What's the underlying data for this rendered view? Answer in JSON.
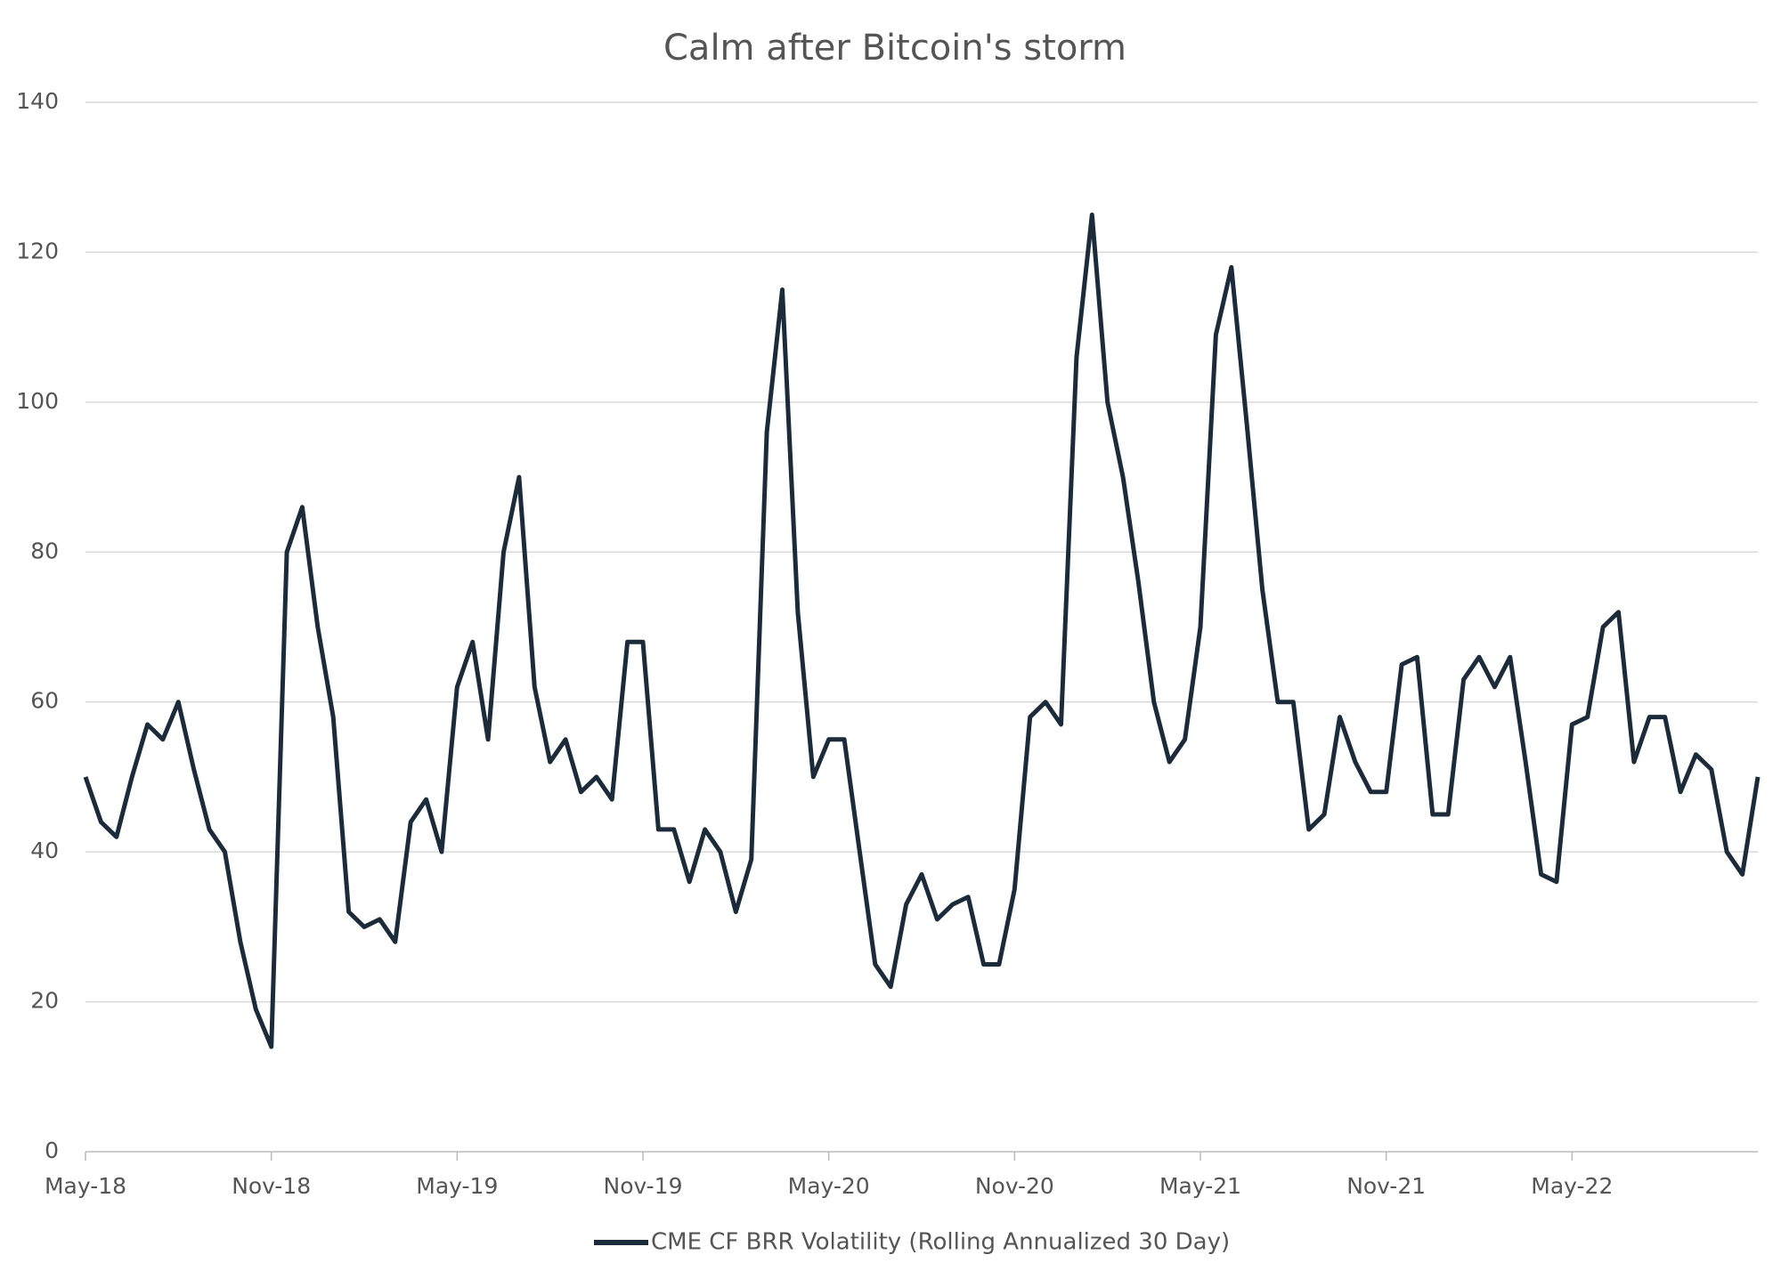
{
  "chart_data": {
    "type": "line",
    "title": "Calm after Bitcoin's storm",
    "categories": [
      "May-18",
      null,
      null,
      null,
      null,
      null,
      null,
      null,
      null,
      null,
      null,
      null,
      "Nov-18",
      null,
      null,
      null,
      null,
      null,
      null,
      null,
      null,
      null,
      null,
      null,
      "May-19",
      null,
      null,
      null,
      null,
      null,
      null,
      null,
      null,
      null,
      null,
      null,
      "Nov-19",
      null,
      null,
      null,
      null,
      null,
      null,
      null,
      null,
      null,
      null,
      null,
      "May-20",
      null,
      null,
      null,
      null,
      null,
      null,
      null,
      null,
      null,
      null,
      null,
      "Nov-20",
      null,
      null,
      null,
      null,
      null,
      null,
      null,
      null,
      null,
      null,
      null,
      "May-21",
      null,
      null,
      null,
      null,
      null,
      null,
      null,
      null,
      null,
      null,
      null,
      "Nov-21",
      null,
      null,
      null,
      null,
      null,
      null,
      null,
      null,
      null,
      null,
      null,
      "May-22",
      null,
      null,
      null,
      null,
      null,
      null,
      null,
      null,
      null,
      null,
      null,
      null
    ],
    "series": [
      {
        "name": "CME CF BRR Volatility (Rolling Annualized 30 Day)",
        "color": "#1c2b3a",
        "values": [
          50,
          44,
          42,
          50,
          57,
          55,
          60,
          51,
          43,
          40,
          28,
          19,
          14,
          80,
          86,
          70,
          58,
          32,
          30,
          31,
          28,
          44,
          47,
          40,
          62,
          68,
          55,
          80,
          90,
          62,
          52,
          55,
          48,
          50,
          47,
          68,
          68,
          43,
          43,
          36,
          43,
          40,
          32,
          39,
          96,
          115,
          72,
          50,
          55,
          55,
          40,
          25,
          22,
          33,
          37,
          31,
          33,
          34,
          25,
          25,
          35,
          58,
          60,
          57,
          106,
          125,
          100,
          90,
          76,
          60,
          52,
          55,
          70,
          109,
          118,
          97,
          75,
          60,
          60,
          43,
          45,
          58,
          52,
          48,
          48,
          65,
          66,
          45,
          45,
          63,
          66,
          62,
          66,
          52,
          37,
          36,
          57,
          58,
          70,
          72,
          52,
          58,
          58,
          48,
          53,
          51,
          40,
          37,
          50
        ]
      }
    ],
    "ylim": [
      0,
      140
    ],
    "yticks": [
      0,
      20,
      40,
      60,
      80,
      100,
      120,
      140
    ],
    "grid": true,
    "legend": "bottom"
  }
}
